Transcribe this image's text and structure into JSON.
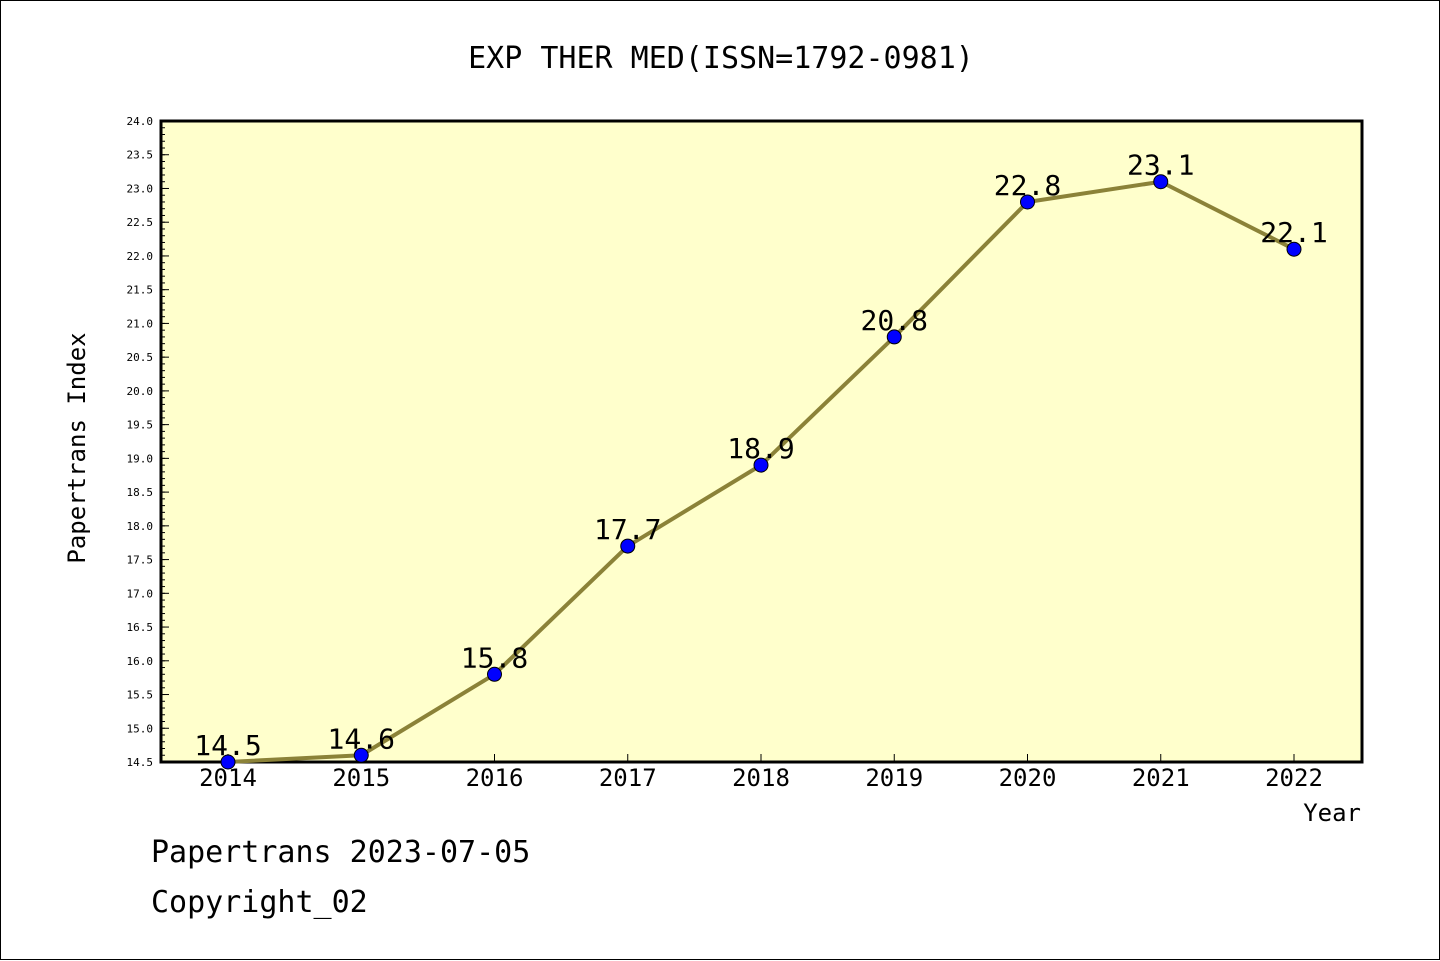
{
  "chart_data": {
    "type": "line",
    "title": "EXP THER MED(ISSN=1792-0981)",
    "xlabel": "Year",
    "ylabel": "Papertrans Index",
    "categories": [
      "2014",
      "2015",
      "2016",
      "2017",
      "2018",
      "2019",
      "2020",
      "2021",
      "2022"
    ],
    "series": [
      {
        "values": [
          14.5,
          14.6,
          15.8,
          17.7,
          18.9,
          20.8,
          22.8,
          23.1,
          22.1
        ]
      }
    ],
    "data_labels": [
      "14.5",
      "14.6",
      "15.8",
      "17.7",
      "18.9",
      "20.8",
      "22.8",
      "23.1",
      "22.1"
    ],
    "ylim": [
      14.5,
      24.0
    ],
    "yticks": [
      "14.5",
      "15.0",
      "15.5",
      "16.0",
      "16.5",
      "17.0",
      "17.5",
      "18.0",
      "18.5",
      "19.0",
      "19.5",
      "20.0",
      "20.5",
      "21.0",
      "21.5",
      "22.0",
      "22.5",
      "23.0",
      "23.5",
      "24.0"
    ],
    "grid": false,
    "legend": "none",
    "colors": {
      "plot_background": "#ffffcc",
      "line": "#8b8238",
      "marker": "#0000ff"
    }
  },
  "footer": {
    "line1": "Papertrans 2023-07-05",
    "line2": "Copyright_02"
  }
}
